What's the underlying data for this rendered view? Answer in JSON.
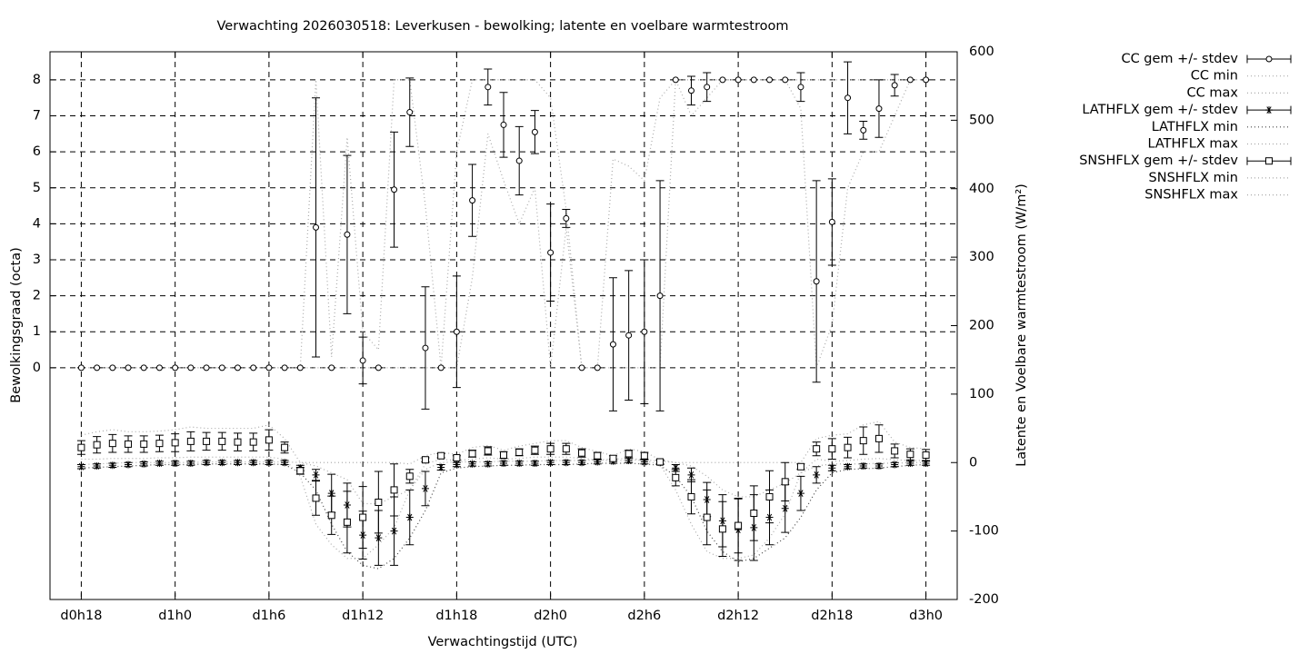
{
  "chart_data": {
    "type": "errorbar",
    "title": "Verwachting 2026030518: Leverkusen - bewolking; latente en voelbare warmtestroom",
    "x_label": "Verwachtingstijd (UTC)",
    "y_label": "Bewolkingsgraad (octa)",
    "y2_label": "Latente en Voelbare warmtestroom (W/m²)",
    "grid": true,
    "legend": "right",
    "xlim": [
      16,
      74
    ],
    "ylim": [
      -6.44,
      8.78
    ],
    "y2lim": [
      -200,
      600
    ],
    "xticks": [
      {
        "value": 18,
        "label": "d0h18"
      },
      {
        "value": 24,
        "label": "d1h0"
      },
      {
        "value": 30,
        "label": "d1h6"
      },
      {
        "value": 36,
        "label": "d1h12"
      },
      {
        "value": 42,
        "label": "d1h18"
      },
      {
        "value": 48,
        "label": "d2h0"
      },
      {
        "value": 54,
        "label": "d2h6"
      },
      {
        "value": 60,
        "label": "d2h12"
      },
      {
        "value": 66,
        "label": "d2h18"
      },
      {
        "value": 72,
        "label": "d3h0"
      }
    ],
    "yticks": [
      0,
      1,
      2,
      3,
      4,
      5,
      6,
      7,
      8
    ],
    "y2ticks": [
      -200,
      -100,
      0,
      100,
      200,
      300,
      400,
      500,
      600
    ],
    "x": [
      18,
      19,
      20,
      21,
      22,
      23,
      24,
      25,
      26,
      27,
      28,
      29,
      30,
      31,
      32,
      33,
      34,
      35,
      36,
      37,
      38,
      39,
      40,
      41,
      42,
      43,
      44,
      45,
      46,
      47,
      48,
      49,
      50,
      51,
      52,
      53,
      54,
      55,
      56,
      57,
      58,
      59,
      60,
      61,
      62,
      63,
      64,
      65,
      66,
      67,
      68,
      69,
      70,
      71,
      72
    ],
    "series": [
      {
        "name": "CC gem +/- stdev",
        "style": "errorbar",
        "marker": "circle",
        "color": "#000000",
        "values": [
          0,
          0,
          0,
          0,
          0,
          0,
          0,
          0,
          0,
          0,
          0,
          0,
          0,
          0,
          0,
          3.9,
          0,
          3.7,
          0.2,
          0,
          4.95,
          7.1,
          0.55,
          0,
          1.0,
          4.65,
          7.8,
          6.75,
          5.75,
          6.55,
          3.2,
          4.15,
          0,
          0,
          0.65,
          0.9,
          1.0,
          2.0,
          8,
          7.7,
          7.8,
          8,
          8,
          8,
          8,
          8,
          7.8,
          2.4,
          4.05,
          7.5,
          6.6,
          7.2,
          7.85,
          8,
          8
        ],
        "errors": [
          0,
          0,
          0,
          0,
          0,
          0,
          0,
          0,
          0,
          0,
          0,
          0,
          0,
          0,
          0,
          3.6,
          0,
          2.2,
          0.65,
          0,
          1.6,
          0.95,
          1.7,
          0,
          1.55,
          1.0,
          0.5,
          0.9,
          0.95,
          0.6,
          1.35,
          0.25,
          0,
          0,
          1.85,
          1.8,
          2.0,
          3.2,
          0,
          0.4,
          0.4,
          0,
          0,
          0,
          0,
          0,
          0.4,
          2.8,
          1.2,
          1.0,
          0.25,
          0.8,
          0.3,
          0,
          0
        ]
      },
      {
        "name": "CC min",
        "style": "dotted",
        "color": "#aaaaaa",
        "values": [
          0,
          0,
          0,
          0,
          0,
          0,
          0,
          0,
          0,
          0,
          0,
          0,
          0,
          0,
          0,
          0,
          0,
          0,
          0,
          0,
          0,
          0,
          0,
          0,
          0,
          2.5,
          6.5,
          5.2,
          4.0,
          5.0,
          0,
          3.9,
          0,
          0,
          0,
          0,
          0,
          0,
          8,
          7.0,
          7.5,
          8,
          8,
          8,
          8,
          8,
          7.2,
          0,
          1.2,
          5.0,
          6.0,
          6.0,
          7.0,
          8,
          8
        ]
      },
      {
        "name": "CC max",
        "style": "dotted",
        "color": "#aaaaaa",
        "values": [
          0,
          0,
          0,
          0,
          0,
          0,
          0,
          0,
          0,
          0,
          0,
          0,
          0,
          0,
          0,
          8,
          0.3,
          6.4,
          1.0,
          0.5,
          8,
          8,
          4.5,
          0,
          6,
          8,
          8,
          8,
          8,
          8,
          7.5,
          4.4,
          0,
          0,
          5.8,
          5.6,
          5.2,
          7.5,
          8,
          8,
          8,
          8,
          8,
          8,
          8,
          8,
          8,
          8,
          8,
          8,
          8,
          8,
          8,
          8,
          8
        ]
      },
      {
        "name": "LATHFLX gem +/- stdev",
        "style": "errorbar",
        "marker": "star",
        "axis": "y2",
        "color": "#000000",
        "values": [
          -6,
          -5,
          -4,
          -3,
          -2,
          -1,
          -1,
          -1,
          0,
          0,
          0,
          0,
          0,
          0,
          -8,
          -18,
          -45,
          -62,
          -106,
          -110,
          -100,
          -80,
          -38,
          -7,
          -3,
          -2,
          -2,
          -1,
          -1,
          -1,
          0,
          0,
          0,
          1,
          2,
          3,
          1,
          0,
          -8,
          -18,
          -54,
          -85,
          -98,
          -95,
          -80,
          -67,
          -45,
          -18,
          -8,
          -6,
          -5,
          -5,
          -3,
          -1,
          -1
        ],
        "errors": [
          3,
          3,
          3,
          3,
          3,
          3,
          3,
          3,
          3,
          3,
          3,
          3,
          3,
          3,
          4,
          8,
          28,
          32,
          35,
          40,
          50,
          40,
          25,
          4,
          3,
          3,
          3,
          3,
          3,
          3,
          3,
          3,
          3,
          3,
          3,
          3,
          3,
          3,
          5,
          10,
          25,
          38,
          45,
          48,
          40,
          35,
          25,
          12,
          4,
          3,
          3,
          3,
          3,
          3,
          3
        ]
      },
      {
        "name": "LATHFLX min",
        "style": "dotted",
        "axis": "y2",
        "color": "#444444",
        "values": [
          -8,
          -7,
          -6,
          -5,
          -4,
          -3,
          -3,
          -3,
          -2,
          -2,
          -2,
          -2,
          -2,
          -3,
          -15,
          -40,
          -90,
          -130,
          -150,
          -155,
          -140,
          -110,
          -70,
          -15,
          -8,
          -6,
          -5,
          -4,
          -4,
          -3,
          -3,
          -3,
          -2,
          -1,
          -1,
          -1,
          -2,
          -4,
          -20,
          -50,
          -100,
          -130,
          -145,
          -140,
          -125,
          -110,
          -80,
          -40,
          -15,
          -10,
          -9,
          -8,
          -6,
          -4,
          -3
        ]
      },
      {
        "name": "LATHFLX max",
        "style": "dotted",
        "axis": "y2",
        "color": "#aaaaaa",
        "values": [
          -3,
          -2,
          -1,
          0,
          0,
          0,
          0,
          0,
          1,
          1,
          1,
          1,
          1,
          1,
          0,
          -5,
          -15,
          -25,
          -60,
          -60,
          -50,
          -40,
          -10,
          0,
          1,
          1,
          1,
          2,
          2,
          2,
          3,
          3,
          3,
          4,
          5,
          6,
          4,
          2,
          0,
          -5,
          -20,
          -40,
          -50,
          -50,
          -40,
          -30,
          -15,
          -5,
          -2,
          -2,
          -2,
          -1,
          -1,
          0,
          0
        ]
      },
      {
        "name": "SNSHFLX gem +/- stdev",
        "style": "errorbar",
        "marker": "square",
        "axis": "y2",
        "color": "#000000",
        "values": [
          22,
          26,
          28,
          27,
          27,
          28,
          29,
          31,
          31,
          31,
          30,
          30,
          33,
          22,
          -12,
          -52,
          -77,
          -87,
          -80,
          -58,
          -40,
          -20,
          4,
          10,
          7,
          13,
          17,
          11,
          15,
          18,
          20,
          20,
          14,
          10,
          6,
          13,
          10,
          1,
          -22,
          -50,
          -80,
          -97,
          -92,
          -74,
          -50,
          -28,
          -6,
          20,
          20,
          22,
          32,
          35,
          17,
          12,
          11
        ],
        "errors": [
          10,
          12,
          13,
          12,
          12,
          12,
          13,
          14,
          13,
          13,
          13,
          13,
          15,
          8,
          5,
          25,
          28,
          45,
          45,
          45,
          38,
          10,
          3,
          3,
          3,
          5,
          6,
          5,
          5,
          6,
          8,
          8,
          6,
          5,
          4,
          5,
          5,
          3,
          12,
          25,
          40,
          40,
          40,
          40,
          38,
          28,
          4,
          10,
          15,
          15,
          20,
          20,
          10,
          8,
          8
        ]
      },
      {
        "name": "SNSHFLX min",
        "style": "dotted",
        "axis": "y2",
        "color": "#aaaaaa",
        "values": [
          5,
          5,
          6,
          6,
          6,
          7,
          7,
          8,
          8,
          8,
          8,
          8,
          8,
          5,
          -20,
          -90,
          -120,
          -140,
          -140,
          -120,
          -95,
          -40,
          -2,
          5,
          3,
          5,
          7,
          5,
          6,
          8,
          8,
          8,
          6,
          4,
          2,
          4,
          3,
          -3,
          -40,
          -90,
          -130,
          -140,
          -140,
          -135,
          -110,
          -75,
          -15,
          5,
          2,
          3,
          5,
          6,
          4,
          3,
          3
        ]
      },
      {
        "name": "SNSHFLX max",
        "style": "dotted",
        "axis": "y2",
        "color": "#aaaaaa",
        "values": [
          40,
          45,
          48,
          45,
          45,
          46,
          48,
          52,
          50,
          50,
          50,
          50,
          55,
          35,
          0,
          0,
          0,
          0,
          0,
          0,
          0,
          -2,
          10,
          15,
          12,
          22,
          25,
          18,
          24,
          28,
          32,
          32,
          22,
          16,
          10,
          20,
          16,
          4,
          0,
          0,
          0,
          0,
          0,
          0,
          0,
          0,
          0,
          35,
          40,
          42,
          55,
          60,
          30,
          22,
          20
        ]
      }
    ]
  }
}
